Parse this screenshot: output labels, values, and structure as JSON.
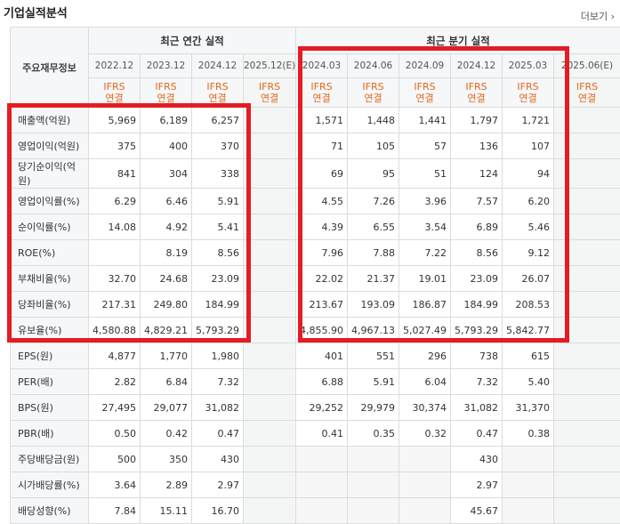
{
  "title": "기업실적분석",
  "more": "더보기",
  "more_arrow": "›",
  "header": {
    "row_label": "주요재무정보",
    "annual_group": "최근 연간 실적",
    "quarter_group": "최근 분기 실적",
    "annual_periods": [
      "2022.12",
      "2023.12",
      "2024.12",
      "2025.12(E)"
    ],
    "quarter_periods": [
      "2024.03",
      "2024.06",
      "2024.09",
      "2024.12",
      "2025.03",
      "2025.06(E)"
    ],
    "ifrs_top": "IFRS",
    "ifrs_bottom": "연결"
  },
  "rows": [
    {
      "label": "매출액(억원)",
      "annual": [
        "5,969",
        "6,189",
        "6,257",
        ""
      ],
      "quarter": [
        "1,571",
        "1,448",
        "1,441",
        "1,797",
        "1,721",
        ""
      ]
    },
    {
      "label": "영업이익(억원)",
      "annual": [
        "375",
        "400",
        "370",
        ""
      ],
      "quarter": [
        "71",
        "105",
        "57",
        "136",
        "107",
        ""
      ]
    },
    {
      "label": "당기순이익(억원)",
      "annual": [
        "841",
        "304",
        "338",
        ""
      ],
      "quarter": [
        "69",
        "95",
        "51",
        "124",
        "94",
        ""
      ]
    },
    {
      "label": "영업이익률(%)",
      "annual": [
        "6.29",
        "6.46",
        "5.91",
        ""
      ],
      "quarter": [
        "4.55",
        "7.26",
        "3.96",
        "7.57",
        "6.20",
        ""
      ]
    },
    {
      "label": "순이익률(%)",
      "annual": [
        "14.08",
        "4.92",
        "5.41",
        ""
      ],
      "quarter": [
        "4.39",
        "6.55",
        "3.54",
        "6.89",
        "5.46",
        ""
      ]
    },
    {
      "label": "ROE(%)",
      "annual": [
        "",
        "8.19",
        "8.56",
        ""
      ],
      "quarter": [
        "7.96",
        "7.88",
        "7.22",
        "8.56",
        "9.12",
        ""
      ]
    },
    {
      "label": "부채비율(%)",
      "annual": [
        "32.70",
        "24.68",
        "23.09",
        ""
      ],
      "quarter": [
        "22.02",
        "21.37",
        "19.01",
        "23.09",
        "26.07",
        ""
      ]
    },
    {
      "label": "당좌비율(%)",
      "annual": [
        "217.31",
        "249.80",
        "184.99",
        ""
      ],
      "quarter": [
        "213.67",
        "193.09",
        "186.87",
        "184.99",
        "208.53",
        ""
      ]
    },
    {
      "label": "유보율(%)",
      "annual": [
        "4,580.88",
        "4,829.21",
        "5,793.29",
        ""
      ],
      "quarter": [
        "4,855.90",
        "4,967.13",
        "5,027.49",
        "5,793.29",
        "5,842.77",
        ""
      ]
    },
    {
      "label": "EPS(원)",
      "annual": [
        "4,877",
        "1,770",
        "1,980",
        ""
      ],
      "quarter": [
        "401",
        "551",
        "296",
        "738",
        "615",
        ""
      ]
    },
    {
      "label": "PER(배)",
      "annual": [
        "2.82",
        "6.84",
        "7.32",
        ""
      ],
      "quarter": [
        "6.88",
        "5.91",
        "6.04",
        "7.32",
        "5.40",
        ""
      ]
    },
    {
      "label": "BPS(원)",
      "annual": [
        "27,495",
        "29,077",
        "31,082",
        ""
      ],
      "quarter": [
        "29,252",
        "29,979",
        "30,374",
        "31,082",
        "31,370",
        ""
      ]
    },
    {
      "label": "PBR(배)",
      "annual": [
        "0.50",
        "0.42",
        "0.47",
        ""
      ],
      "quarter": [
        "0.41",
        "0.35",
        "0.32",
        "0.47",
        "0.38",
        ""
      ]
    },
    {
      "label": "주당배당금(원)",
      "annual": [
        "500",
        "350",
        "430",
        ""
      ],
      "quarter": [
        "",
        "",
        "",
        "430",
        "",
        ""
      ],
      "quarter_empty": true
    },
    {
      "label": "시가배당률(%)",
      "annual": [
        "3.64",
        "2.89",
        "2.97",
        ""
      ],
      "quarter": [
        "",
        "",
        "",
        "2.97",
        "",
        ""
      ],
      "quarter_empty": true
    },
    {
      "label": "배당성향(%)",
      "annual": [
        "7.84",
        "15.11",
        "16.70",
        ""
      ],
      "quarter": [
        "",
        "",
        "",
        "45.67",
        "",
        ""
      ],
      "quarter_empty": true
    }
  ],
  "colors": {
    "highlight_border": "#e51c23",
    "ifrs_text": "#e2681b"
  }
}
